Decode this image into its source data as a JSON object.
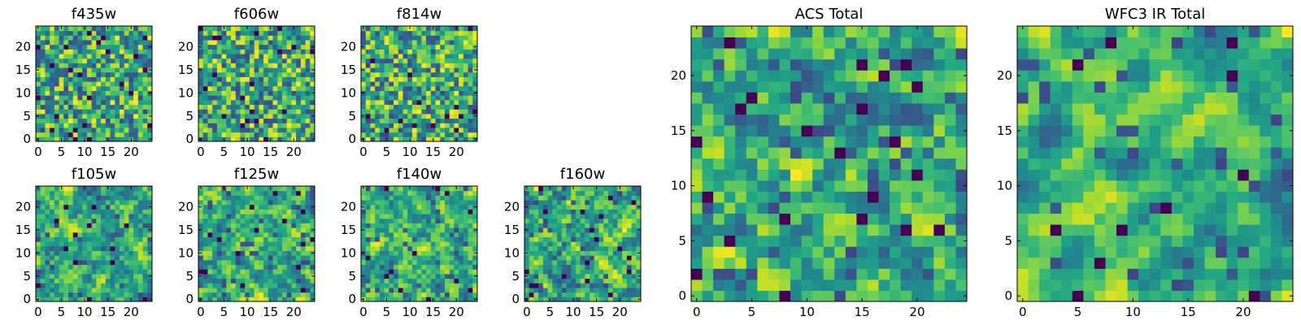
{
  "figure": {
    "description_colormap": "viridis",
    "grid_size": 25
  },
  "chart_data": [
    {
      "type": "heatmap",
      "title": "f435w",
      "xticks": [
        "0",
        "5",
        "10",
        "15",
        "20"
      ],
      "yticks": [
        "0",
        "5",
        "10",
        "15",
        "20"
      ],
      "xlim": [
        0,
        25
      ],
      "ylim": [
        0,
        25
      ],
      "colormap": "viridis",
      "seed": 11,
      "smooth": 0,
      "vmin": 0.0,
      "vmax": 1.0
    },
    {
      "type": "heatmap",
      "title": "f606w",
      "xticks": [
        "0",
        "5",
        "10",
        "15",
        "20"
      ],
      "yticks": [
        "0",
        "5",
        "10",
        "15",
        "20"
      ],
      "xlim": [
        0,
        25
      ],
      "ylim": [
        0,
        25
      ],
      "colormap": "viridis",
      "seed": 23,
      "smooth": 0,
      "vmin": 0.0,
      "vmax": 1.0
    },
    {
      "type": "heatmap",
      "title": "f814w",
      "xticks": [
        "0",
        "5",
        "10",
        "15",
        "20"
      ],
      "yticks": [
        "0",
        "5",
        "10",
        "15",
        "20"
      ],
      "xlim": [
        0,
        25
      ],
      "ylim": [
        0,
        25
      ],
      "colormap": "viridis",
      "seed": 37,
      "smooth": 0,
      "vmin": 0.0,
      "vmax": 1.0
    },
    {
      "type": "heatmap",
      "title": "f105w",
      "xticks": [
        "0",
        "5",
        "10",
        "15",
        "20"
      ],
      "yticks": [
        "0",
        "5",
        "10",
        "15",
        "20"
      ],
      "xlim": [
        0,
        25
      ],
      "ylim": [
        0,
        25
      ],
      "colormap": "viridis",
      "seed": 41,
      "smooth": 1,
      "vmin": 0.0,
      "vmax": 1.0
    },
    {
      "type": "heatmap",
      "title": "f125w",
      "xticks": [
        "0",
        "5",
        "10",
        "15",
        "20"
      ],
      "yticks": [
        "0",
        "5",
        "10",
        "15",
        "20"
      ],
      "xlim": [
        0,
        25
      ],
      "ylim": [
        0,
        25
      ],
      "colormap": "viridis",
      "seed": 53,
      "smooth": 1,
      "vmin": 0.0,
      "vmax": 1.0
    },
    {
      "type": "heatmap",
      "title": "f140w",
      "xticks": [
        "0",
        "5",
        "10",
        "15",
        "20"
      ],
      "yticks": [
        "0",
        "5",
        "10",
        "15",
        "20"
      ],
      "xlim": [
        0,
        25
      ],
      "ylim": [
        0,
        25
      ],
      "colormap": "viridis",
      "seed": 67,
      "smooth": 1,
      "vmin": 0.0,
      "vmax": 1.0
    },
    {
      "type": "heatmap",
      "title": "f160w",
      "xticks": [
        "0",
        "5",
        "10",
        "15",
        "20"
      ],
      "yticks": [
        "0",
        "5",
        "10",
        "15",
        "20"
      ],
      "xlim": [
        0,
        25
      ],
      "ylim": [
        0,
        25
      ],
      "colormap": "viridis",
      "seed": 79,
      "smooth": 1,
      "vmin": 0.0,
      "vmax": 1.0
    },
    {
      "type": "heatmap",
      "title": "ACS Total",
      "xticks": [
        "0",
        "5",
        "10",
        "15",
        "20"
      ],
      "yticks": [
        "0",
        "5",
        "10",
        "15",
        "20"
      ],
      "xlim": [
        0,
        25
      ],
      "ylim": [
        0,
        25
      ],
      "colormap": "viridis",
      "seed": 97,
      "smooth": 1,
      "vmin": 0.0,
      "vmax": 1.0
    },
    {
      "type": "heatmap",
      "title": "WFC3 IR Total",
      "xticks": [
        "0",
        "5",
        "10",
        "15",
        "20"
      ],
      "yticks": [
        "0",
        "5",
        "10",
        "15",
        "20"
      ],
      "xlim": [
        0,
        25
      ],
      "ylim": [
        0,
        25
      ],
      "colormap": "viridis",
      "seed": 113,
      "smooth": 2,
      "vmin": 0.0,
      "vmax": 1.0
    }
  ]
}
